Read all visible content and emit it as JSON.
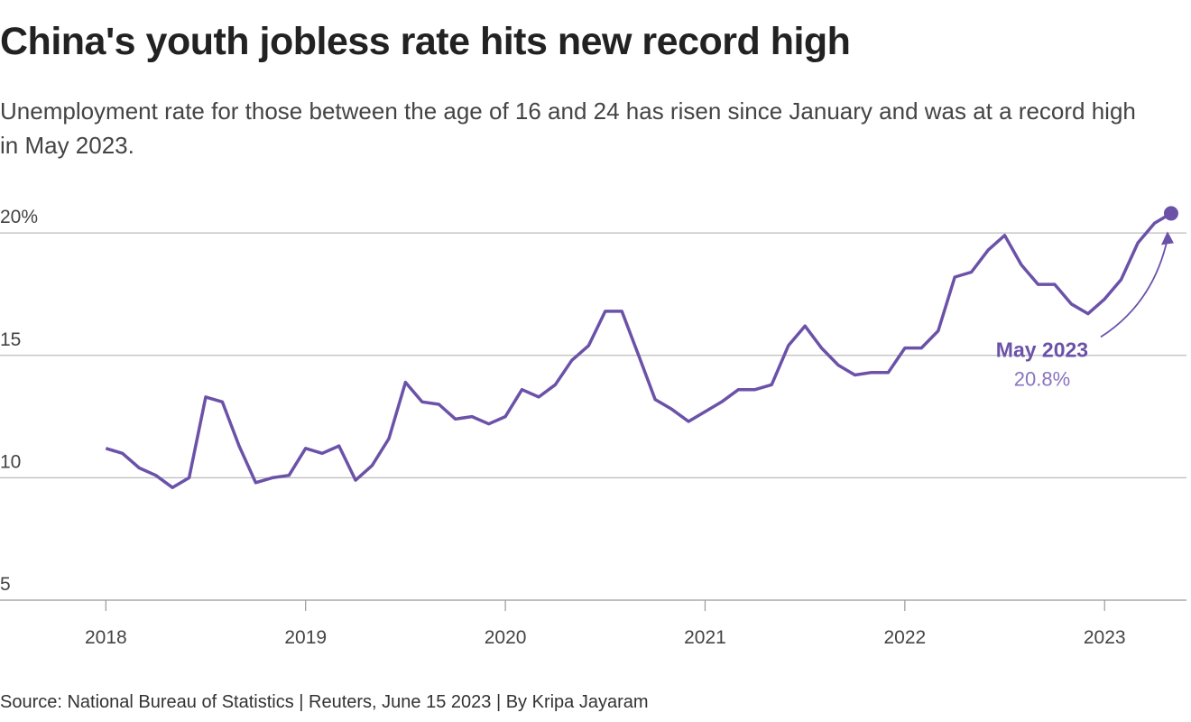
{
  "chart_data": {
    "type": "line",
    "title": "China's youth jobless rate hits new record high",
    "subtitle": "Unemployment rate for those between the age of 16 and 24 has risen since January and was at a record high in May 2023.",
    "source": "Source: National Bureau of Statistics | Reuters, June 15 2023 | By Kripa Jayaram",
    "color": "#6b52a8",
    "x": [
      2018,
      2018.083,
      2018.167,
      2018.25,
      2018.333,
      2018.417,
      2018.5,
      2018.583,
      2018.667,
      2018.75,
      2018.833,
      2018.917,
      2019,
      2019.083,
      2019.167,
      2019.25,
      2019.333,
      2019.417,
      2019.5,
      2019.583,
      2019.667,
      2019.75,
      2019.833,
      2019.917,
      2020,
      2020.083,
      2020.167,
      2020.25,
      2020.333,
      2020.417,
      2020.5,
      2020.583,
      2020.667,
      2020.75,
      2020.833,
      2020.917,
      2021,
      2021.083,
      2021.167,
      2021.25,
      2021.333,
      2021.417,
      2021.5,
      2021.583,
      2021.667,
      2021.75,
      2021.833,
      2021.917,
      2022,
      2022.083,
      2022.167,
      2022.25,
      2022.333,
      2022.417,
      2022.5,
      2022.583,
      2022.667,
      2022.75,
      2022.833,
      2022.917,
      2023,
      2023.083,
      2023.167,
      2023.25,
      2023.333
    ],
    "values": [
      11.2,
      11.0,
      10.4,
      10.1,
      9.6,
      10.0,
      13.3,
      13.1,
      11.3,
      9.8,
      10.0,
      10.1,
      11.2,
      11.0,
      11.3,
      9.9,
      10.5,
      11.6,
      13.9,
      13.1,
      13.0,
      12.4,
      12.5,
      12.2,
      12.5,
      13.6,
      13.3,
      13.8,
      14.8,
      15.4,
      16.8,
      16.8,
      15.0,
      13.2,
      12.8,
      12.3,
      12.7,
      13.1,
      13.6,
      13.6,
      13.8,
      15.4,
      16.2,
      15.3,
      14.6,
      14.2,
      14.3,
      14.3,
      15.3,
      15.3,
      16.0,
      18.2,
      18.4,
      19.3,
      19.9,
      18.7,
      17.9,
      17.9,
      17.1,
      16.7,
      17.3,
      18.1,
      19.6,
      20.4,
      20.8
    ],
    "value_labels": [
      null,
      null,
      null,
      null,
      null,
      null,
      null,
      null,
      null,
      null,
      null,
      null,
      null,
      null,
      null,
      null,
      null,
      null,
      null,
      null,
      null,
      null,
      null,
      null,
      null,
      null,
      null,
      null,
      null,
      null,
      null,
      null,
      null,
      null,
      null,
      null,
      null,
      null,
      null,
      null,
      null,
      null,
      null,
      null,
      null,
      null,
      null,
      null,
      null,
      null,
      null,
      null,
      null,
      null,
      null,
      null,
      null,
      null,
      null,
      null,
      null,
      null,
      null,
      null,
      "20.8%"
    ],
    "annotation": "May 2023",
    "xlim": [
      2017.47,
      2023.41
    ],
    "xticks": [
      2018,
      2019,
      2020,
      2021,
      2022,
      2023
    ],
    "ylim": [
      5,
      21
    ],
    "yticks": [
      5,
      10,
      15,
      {
        "value": 20,
        "label": "20%"
      }
    ],
    "grid": true
  }
}
